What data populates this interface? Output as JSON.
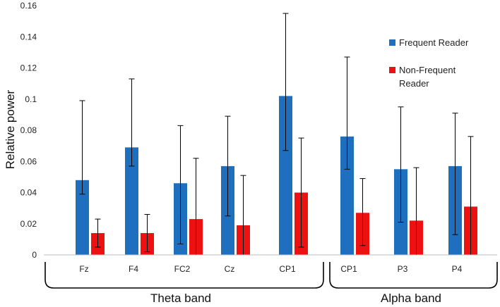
{
  "chart_data": {
    "type": "bar",
    "title": "",
    "xlabel": "",
    "ylabel": "Relative power",
    "ylim": [
      0,
      0.16
    ],
    "yticks": [
      "0",
      "0.02",
      "0.04",
      "0.06",
      "0.08",
      "0.1",
      "0.12",
      "0.14",
      "0.16"
    ],
    "grid": false,
    "legend_position": "right",
    "categories": [
      "Fz",
      "F4",
      "FC2",
      "Cz",
      "CP1",
      "CP1",
      "P3",
      "P4"
    ],
    "series": [
      {
        "name": "Frequent Reader",
        "color": "#1f6fbf",
        "values": [
          0.048,
          0.069,
          0.046,
          0.057,
          0.102,
          0.076,
          0.055,
          0.057
        ],
        "err_low": [
          0.039,
          0.057,
          0.007,
          0.025,
          0.067,
          0.055,
          0.021,
          0.013
        ],
        "err_high": [
          0.099,
          0.113,
          0.083,
          0.089,
          0.155,
          0.127,
          0.095,
          0.091
        ]
      },
      {
        "name": "Non-Frequent Reader",
        "legend_lines": [
          "Non-Frequent",
          "Reader"
        ],
        "color": "#ee1111",
        "values": [
          0.014,
          0.014,
          0.023,
          0.019,
          0.04,
          0.027,
          0.022,
          0.031
        ],
        "err_low": [
          0.005,
          0.002,
          0.0,
          0.0,
          0.005,
          0.006,
          0.0,
          0.0
        ],
        "err_high": [
          0.023,
          0.026,
          0.062,
          0.051,
          0.075,
          0.049,
          0.056,
          0.076
        ]
      }
    ],
    "groups": [
      {
        "label": "Theta band",
        "start": 0,
        "end": 4
      },
      {
        "label": "Alpha band",
        "start": 5,
        "end": 7
      }
    ]
  }
}
